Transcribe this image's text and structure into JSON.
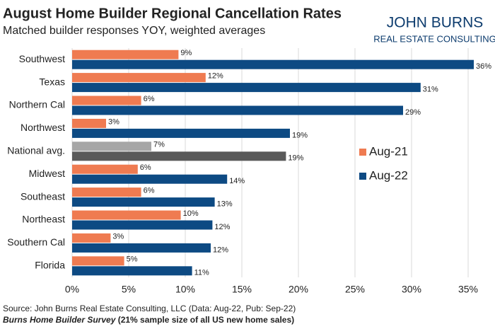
{
  "chart_data": {
    "type": "hbar",
    "title": "August Home Builder Regional Cancellation Rates",
    "subtitle": "Matched builder responses YOY, weighted averages",
    "logo": {
      "line1": "JOHN BURNS",
      "line2": "REAL ESTATE CONSULTING"
    },
    "categories": [
      "Southwest",
      "Texas",
      "Northern Cal",
      "Northwest",
      "National avg.",
      "Midwest",
      "Southeast",
      "Northeast",
      "Southern Cal",
      "Florida"
    ],
    "series": [
      {
        "name": "Aug-21",
        "color": "#ef7b51",
        "highlight_color": "#a6a6a6",
        "values": [
          9.4,
          11.8,
          6.1,
          3.0,
          7.0,
          5.8,
          6.1,
          9.6,
          3.4,
          4.6
        ],
        "value_labels": [
          "9%",
          "12%",
          "6%",
          "3%",
          "7%",
          "6%",
          "6%",
          "10%",
          "3%",
          "5%"
        ]
      },
      {
        "name": "Aug-22",
        "color": "#0d4a83",
        "highlight_color": "#595959",
        "values": [
          35.5,
          30.8,
          29.25,
          19.25,
          18.9,
          13.7,
          12.6,
          12.4,
          12.25,
          10.6
        ],
        "value_labels": [
          "36%",
          "31%",
          "29%",
          "19%",
          "19%",
          "14%",
          "13%",
          "12%",
          "12%",
          "11%"
        ]
      }
    ],
    "highlight_index": 4,
    "xlim": [
      0,
      36
    ],
    "xticks": [
      {
        "value": 0,
        "label": "0%"
      },
      {
        "value": 5,
        "label": "5%"
      },
      {
        "value": 10,
        "label": "10%"
      },
      {
        "value": 15,
        "label": "15%"
      },
      {
        "value": 20,
        "label": "20%"
      },
      {
        "value": 25,
        "label": "25%"
      },
      {
        "value": 30,
        "label": "30%"
      },
      {
        "value": 35,
        "label": "35%"
      }
    ],
    "grid": true,
    "legend": "right",
    "source": "Source: John Burns Real Estate Consulting, LLC (Data: Aug-22, Pub: Sep-22)",
    "note_title": "Burns Home Builder Survey",
    "note_text": " (21% sample size of all US new home sales)"
  }
}
